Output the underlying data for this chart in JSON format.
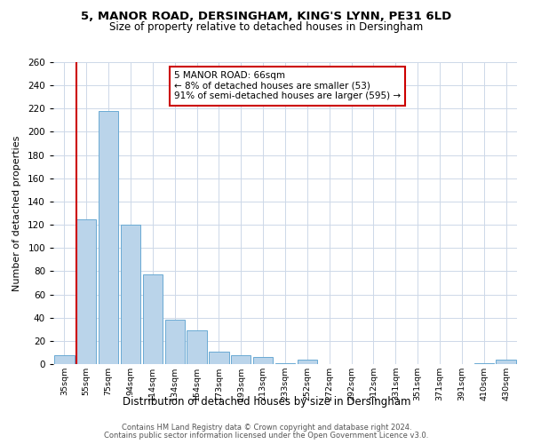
{
  "title": "5, MANOR ROAD, DERSINGHAM, KING'S LYNN, PE31 6LD",
  "subtitle": "Size of property relative to detached houses in Dersingham",
  "xlabel": "Distribution of detached houses by size in Dersingham",
  "ylabel": "Number of detached properties",
  "bar_labels": [
    "35sqm",
    "55sqm",
    "75sqm",
    "94sqm",
    "114sqm",
    "134sqm",
    "154sqm",
    "173sqm",
    "193sqm",
    "213sqm",
    "233sqm",
    "252sqm",
    "272sqm",
    "292sqm",
    "312sqm",
    "331sqm",
    "351sqm",
    "371sqm",
    "391sqm",
    "410sqm",
    "430sqm"
  ],
  "bar_values": [
    8,
    125,
    218,
    120,
    77,
    38,
    29,
    11,
    8,
    6,
    1,
    4,
    0,
    0,
    0,
    0,
    0,
    0,
    0,
    1,
    4
  ],
  "bar_color": "#bad4ea",
  "bar_edge_color": "#6aaad4",
  "ylim": [
    0,
    260
  ],
  "yticks": [
    0,
    20,
    40,
    60,
    80,
    100,
    120,
    140,
    160,
    180,
    200,
    220,
    240,
    260
  ],
  "vline_color": "#cc0000",
  "annotation_title": "5 MANOR ROAD: 66sqm",
  "annotation_line1": "← 8% of detached houses are smaller (53)",
  "annotation_line2": "91% of semi-detached houses are larger (595) →",
  "annotation_box_color": "#cc0000",
  "footer1": "Contains HM Land Registry data © Crown copyright and database right 2024.",
  "footer2": "Contains public sector information licensed under the Open Government Licence v3.0.",
  "background_color": "#ffffff",
  "grid_color": "#cdd8e8"
}
